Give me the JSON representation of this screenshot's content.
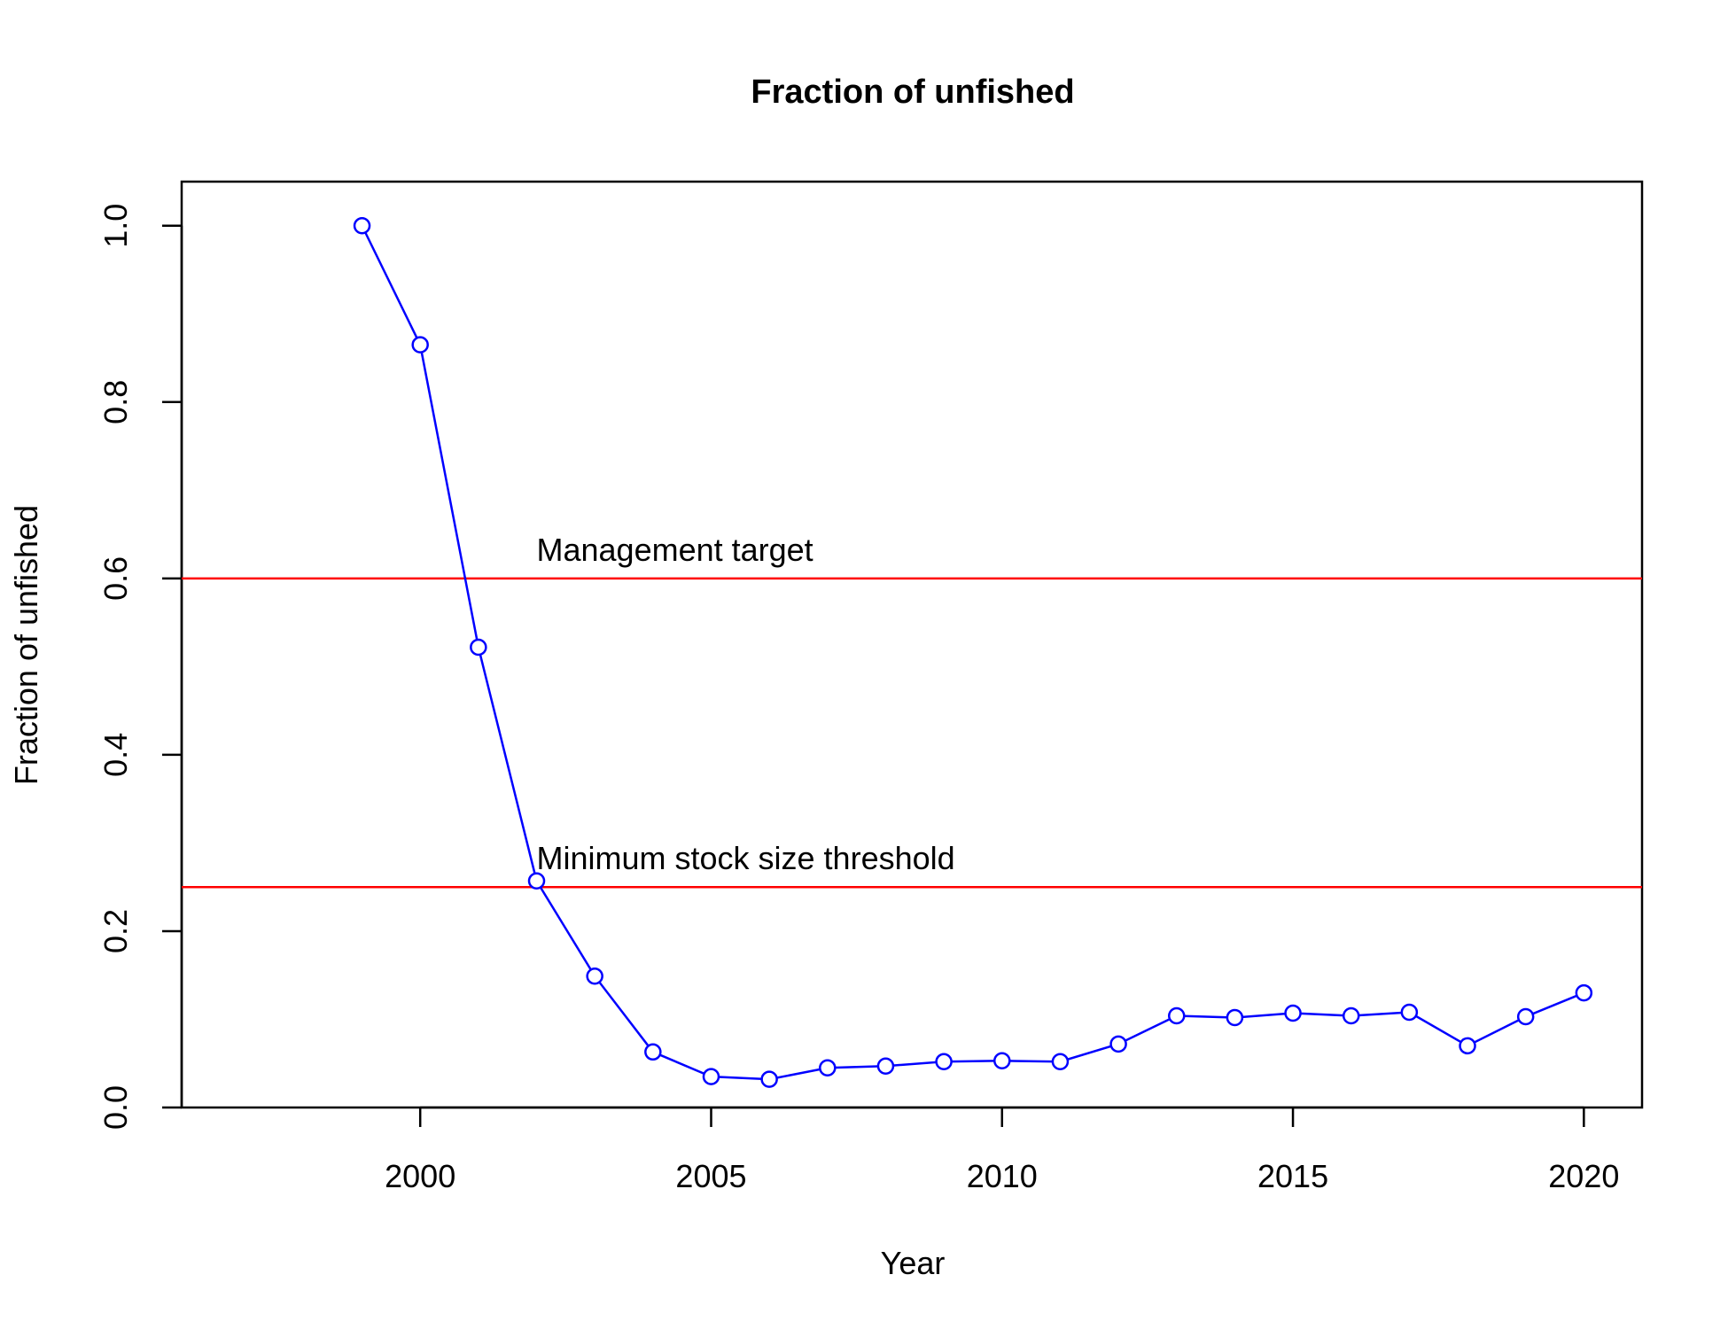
{
  "chart_data": {
    "type": "line",
    "title": "Fraction of unfished",
    "xlabel": "Year",
    "ylabel": "Fraction of unfished",
    "xlim": [
      1995.9,
      2021.0
    ],
    "ylim": [
      0.0,
      1.05
    ],
    "xticks": [
      2000,
      2005,
      2010,
      2015,
      2020
    ],
    "xtick_labels": [
      "2000",
      "2005",
      "2010",
      "2015",
      "2020"
    ],
    "yticks": [
      0.0,
      0.2,
      0.4,
      0.6,
      0.8,
      1.0
    ],
    "ytick_labels": [
      "0.0",
      "0.2",
      "0.4",
      "0.6",
      "0.8",
      "1.0"
    ],
    "grid": false,
    "series": [
      {
        "color": "#0000ff",
        "marker": "open-circle",
        "x": [
          1999,
          2000,
          2001,
          2002,
          2003,
          2004,
          2005,
          2006,
          2007,
          2008,
          2009,
          2010,
          2011,
          2012,
          2013,
          2014,
          2015,
          2016,
          2017,
          2018,
          2019,
          2020
        ],
        "y": [
          1.0,
          0.865,
          0.522,
          0.257,
          0.149,
          0.063,
          0.035,
          0.032,
          0.045,
          0.047,
          0.052,
          0.053,
          0.052,
          0.072,
          0.104,
          0.102,
          0.107,
          0.104,
          0.108,
          0.07,
          0.103,
          0.13
        ]
      }
    ],
    "reference_lines": [
      {
        "y": 0.6,
        "color": "#ff0000",
        "label": "Management target",
        "label_x": 2002
      },
      {
        "y": 0.25,
        "color": "#ff0000",
        "label": "Minimum stock size threshold",
        "label_x": 2002
      }
    ]
  }
}
